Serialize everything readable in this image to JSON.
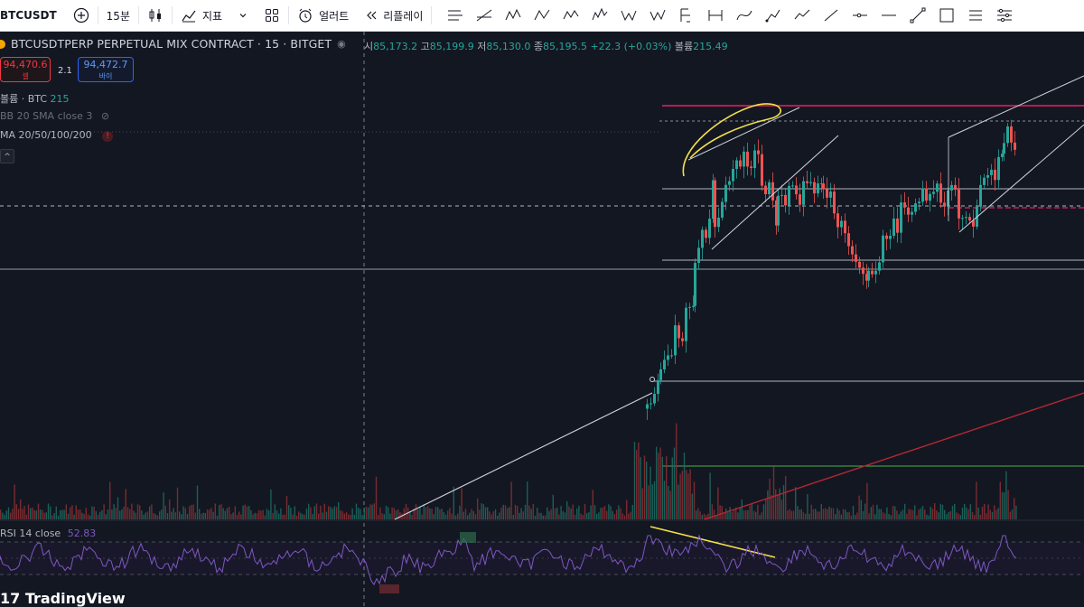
{
  "toolbar": {
    "symbol": "BTCUSDT",
    "add_icon": "plus-circle-icon",
    "interval": "15분",
    "chart_type_icon": "candles-icon",
    "indicators_label": "지표",
    "indicators_icon": "indicators-icon",
    "layout_icon": "grid-icon",
    "alert_label": "얼러트",
    "alert_icon": "alarm-clock-icon",
    "replay_label": "리플레이",
    "replay_icon": "rewind-icon",
    "drawing_tools": [
      "parallel-channel-icon",
      "regression-trend-icon",
      "xabcd-pattern-icon",
      "abcd-pattern-icon",
      "abcd-wave-icon",
      "elliott-wave-icon",
      "w-pattern-icon",
      "w-z-pattern-icon",
      "fixed-range-icon",
      "measure-icon",
      "curve-icon",
      "path-icon",
      "trend-up-icon",
      "line-icon",
      "horizontal-ray-icon",
      "horizontal-line-icon",
      "zigzag-icon",
      "rectangle-icon",
      "list-icon",
      "settings-sliders-icon"
    ]
  },
  "legend": {
    "title": "BTCUSDTPERP PERPETUAL MIX CONTRACT · 15 · BITGET",
    "ohlc": [
      {
        "label": "시",
        "value": "85,173.2"
      },
      {
        "label": "고",
        "value": "85,199.9"
      },
      {
        "label": "저",
        "value": "85,130.0"
      },
      {
        "label": "종",
        "value": "85,195.5"
      }
    ],
    "change": "+22.3 (+0.03%)",
    "volume_label": "볼륨",
    "volume_value": "215.49"
  },
  "trade": {
    "sell_price": "94,470.6",
    "sell_label": "셀",
    "spread": "2.1",
    "buy_price": "94,472.7",
    "buy_label": "바이"
  },
  "indicators": {
    "volume_label": "볼륨 · BTC",
    "volume_value": "215",
    "bb_label": "BB 20 SMA close 3",
    "ma_label": "MA 20/50/100/200",
    "ma_warn": "!",
    "collapse": "^"
  },
  "rsi": {
    "label": "RSI 14 close",
    "value": "52.83"
  },
  "brand": "17 TradingView",
  "colors": {
    "up": "#26a69a",
    "down": "#ef5350",
    "background": "#131722",
    "rsi": "#7e57c2",
    "annotation_yellow": "#f5e04a",
    "pink_level": "#e91e63",
    "red_trend": "#b22833"
  }
}
